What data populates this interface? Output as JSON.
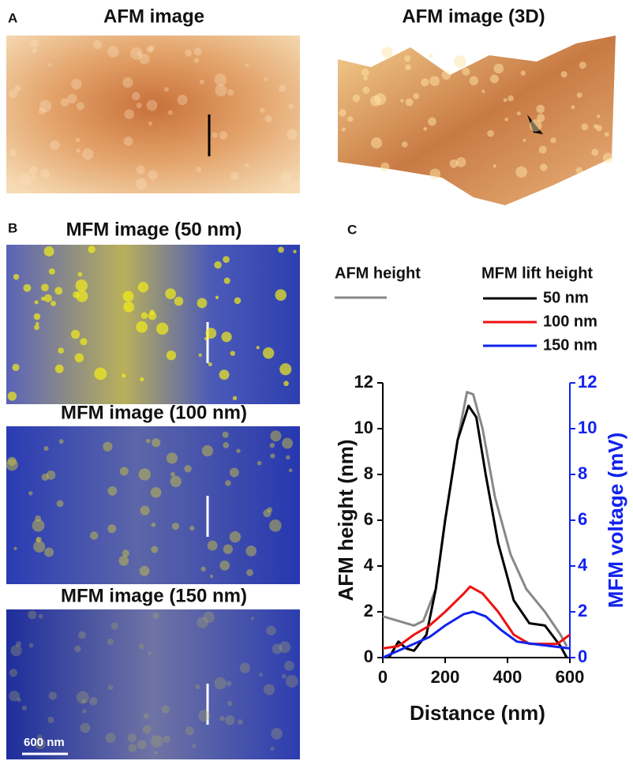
{
  "panel_labels": [
    "A",
    "B",
    "C"
  ],
  "image_titles": [
    "AFM image",
    "AFM image (3D)",
    "MFM image (50 nm)",
    "MFM image (100 nm)",
    "MFM image (150 nm)"
  ],
  "scale_bar": "600 nm",
  "chart_data": {
    "type": "line",
    "xlabel": "Distance (nm)",
    "ylabel": "AFM height (nm)",
    "y2label": "MFM voltage (mV)",
    "legend_title": "MFM lift height",
    "xlim": [
      0,
      600
    ],
    "xticks": [
      0,
      200,
      400,
      600
    ],
    "ylim": [
      0,
      12
    ],
    "yticks": [
      0,
      2,
      4,
      6,
      8,
      10,
      12
    ],
    "y2lim": [
      0,
      12
    ],
    "y2ticks": [
      0,
      2,
      4,
      6,
      8,
      10,
      12
    ],
    "series": [
      {
        "name": "AFM height",
        "color": "#888888",
        "x": [
          0,
          50,
          100,
          130,
          170,
          200,
          240,
          270,
          290,
          320,
          360,
          410,
          460,
          520,
          570,
          590
        ],
        "values": [
          1.8,
          1.6,
          1.4,
          1.6,
          3,
          6,
          9.5,
          11.6,
          11.5,
          10,
          7,
          4.5,
          3,
          2,
          1,
          0.5
        ]
      },
      {
        "name": "50 nm",
        "color": "#000000",
        "axis": "y2",
        "x": [
          20,
          50,
          75,
          100,
          140,
          170,
          200,
          240,
          275,
          300,
          330,
          370,
          420,
          470,
          520,
          570,
          590
        ],
        "values": [
          0,
          0.7,
          0.4,
          0.3,
          1,
          3,
          6,
          9.5,
          11,
          10.5,
          8,
          5,
          2.5,
          1.5,
          1.4,
          0.5,
          0
        ]
      },
      {
        "name": "100 nm",
        "color": "#ee1111",
        "axis": "y2",
        "x": [
          0,
          50,
          100,
          150,
          200,
          260,
          280,
          320,
          370,
          420,
          470,
          520,
          560,
          600
        ],
        "values": [
          0.4,
          0.5,
          1,
          1.4,
          2,
          2.8,
          3.1,
          2.8,
          2,
          1,
          0.6,
          0.6,
          0.6,
          1
        ]
      },
      {
        "name": "150 nm",
        "color": "#1122ee",
        "axis": "y2",
        "x": [
          0,
          50,
          100,
          150,
          200,
          260,
          290,
          330,
          380,
          430,
          480,
          540,
          600
        ],
        "values": [
          0,
          0.3,
          0.6,
          0.9,
          1.4,
          1.9,
          2,
          1.8,
          1.2,
          0.7,
          0.6,
          0.5,
          0.4
        ]
      }
    ]
  }
}
